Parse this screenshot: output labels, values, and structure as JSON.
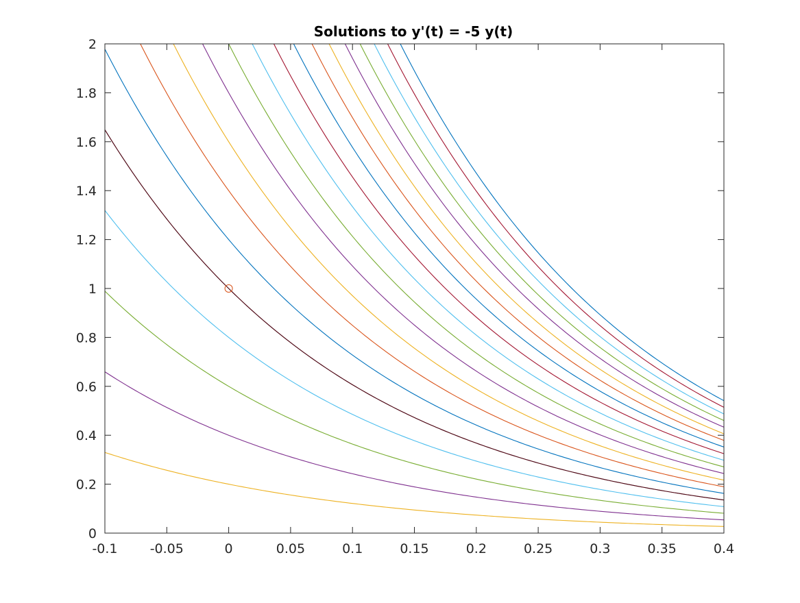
{
  "chart_data": {
    "type": "line",
    "title": "Solutions to y'(t)  =  -5 y(t)",
    "xlabel": "",
    "ylabel": "",
    "xlim": [
      -0.1,
      0.4
    ],
    "ylim": [
      0,
      2
    ],
    "xticks": [
      -0.1,
      -0.05,
      0,
      0.05,
      0.1,
      0.15,
      0.2,
      0.25,
      0.3,
      0.35,
      0.4
    ],
    "xtick_labels": [
      "-0.1",
      "-0.05",
      "0",
      "0.05",
      "0.1",
      "0.15",
      "0.2",
      "0.25",
      "0.3",
      "0.35",
      "0.4"
    ],
    "yticks": [
      0,
      0.2,
      0.4,
      0.6,
      0.8,
      1,
      1.2,
      1.4,
      1.6,
      1.8,
      2
    ],
    "ytick_labels": [
      "0",
      "0.2",
      "0.4",
      "0.6",
      "0.8",
      "1",
      "1.2",
      "1.4",
      "1.6",
      "1.8",
      "2"
    ],
    "grid": false,
    "decay_rate": -5,
    "series_formula": "y(t) = C * exp(-5 t)",
    "curve_colors": [
      "#D95319",
      "#EDB120",
      "#7E2F8E",
      "#77AC30",
      "#4DBEEE",
      "#A2142F",
      "#0072BD"
    ],
    "series": [
      {
        "C": 0.0,
        "color": "#D95319"
      },
      {
        "C": 0.2,
        "color": "#EDB120"
      },
      {
        "C": 0.4,
        "color": "#7E2F8E"
      },
      {
        "C": 0.6,
        "color": "#77AC30"
      },
      {
        "C": 0.8,
        "color": "#4DBEEE"
      },
      {
        "C": 1.0,
        "color": "#A2142F"
      },
      {
        "C": 1.2,
        "color": "#0072BD"
      },
      {
        "C": 1.4,
        "color": "#D95319"
      },
      {
        "C": 1.6,
        "color": "#EDB120"
      },
      {
        "C": 1.8,
        "color": "#7E2F8E"
      },
      {
        "C": 2.0,
        "color": "#77AC30"
      },
      {
        "C": 2.2,
        "color": "#4DBEEE"
      },
      {
        "C": 2.4,
        "color": "#A2142F"
      },
      {
        "C": 2.6,
        "color": "#0072BD"
      },
      {
        "C": 2.8,
        "color": "#D95319"
      },
      {
        "C": 3.0,
        "color": "#EDB120"
      },
      {
        "C": 3.2,
        "color": "#7E2F8E"
      },
      {
        "C": 3.4,
        "color": "#77AC30"
      },
      {
        "C": 3.6,
        "color": "#4DBEEE"
      },
      {
        "C": 3.8,
        "color": "#A2142F"
      },
      {
        "C": 4.0,
        "color": "#0072BD"
      }
    ],
    "highlight_curve": {
      "C": 1.0,
      "color": "#000000"
    },
    "initial_point": {
      "x": 0,
      "y": 1,
      "marker": "circle",
      "color": "#D95319"
    }
  }
}
